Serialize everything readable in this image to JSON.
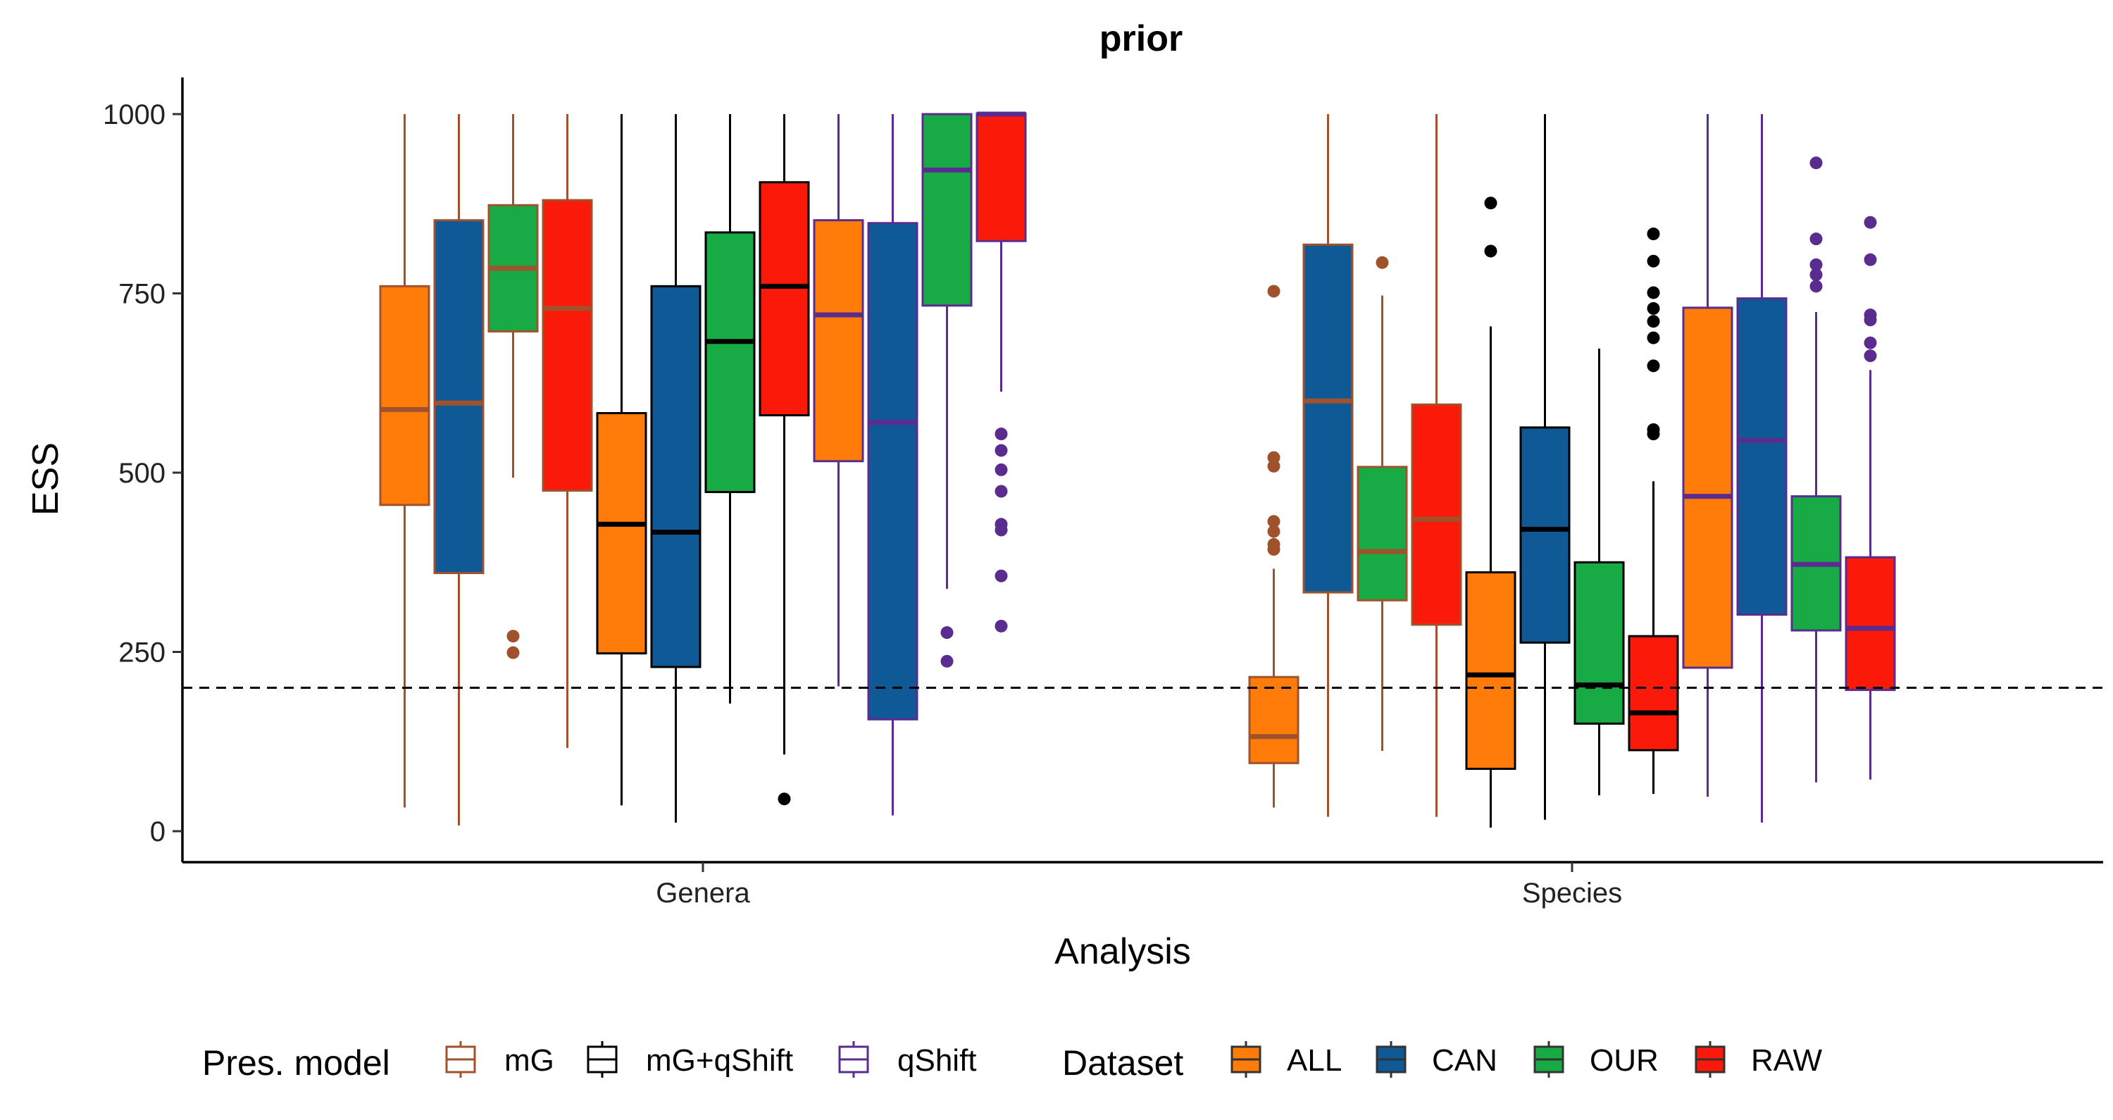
{
  "chart_data": {
    "type": "boxplot",
    "title": "prior",
    "xlabel": "Analysis",
    "ylabel": "ESS",
    "ylim": [
      -45,
      1050
    ],
    "yticks": [
      0,
      250,
      500,
      750,
      1000
    ],
    "categories": [
      "Genera",
      "Species"
    ],
    "reference_line": {
      "y": 200,
      "style": "dashed"
    },
    "grid": false,
    "legend_position": "bottom",
    "legend": {
      "pres_model": {
        "title": "Pres. model",
        "items": [
          {
            "label": "mG",
            "color": "#a0522d"
          },
          {
            "label": "mG+qShift",
            "color": "#000000"
          },
          {
            "label": "qShift",
            "color": "#5b2c8f"
          }
        ]
      },
      "dataset": {
        "title": "Dataset",
        "items": [
          {
            "label": "ALL",
            "color": "#ff7b0a"
          },
          {
            "label": "CAN",
            "color": "#0f5a96"
          },
          {
            "label": "OUR",
            "color": "#18aa45"
          },
          {
            "label": "RAW",
            "color": "#fb190a"
          }
        ]
      }
    },
    "boxes": [
      {
        "category": "Genera",
        "pres_model": "mG",
        "dataset": "ALL",
        "whisker_low": 33,
        "q1": 455,
        "median": 588,
        "q3": 760,
        "whisker_high": 1000,
        "outliers": []
      },
      {
        "category": "Genera",
        "pres_model": "mG",
        "dataset": "CAN",
        "whisker_low": 8,
        "q1": 360,
        "median": 597,
        "q3": 852,
        "whisker_high": 1000,
        "outliers": []
      },
      {
        "category": "Genera",
        "pres_model": "mG",
        "dataset": "OUR",
        "whisker_low": 493,
        "q1": 697,
        "median": 785,
        "q3": 873,
        "whisker_high": 1000,
        "outliers": [
          272,
          249
        ]
      },
      {
        "category": "Genera",
        "pres_model": "mG",
        "dataset": "RAW",
        "whisker_low": 116,
        "q1": 475,
        "median": 729,
        "q3": 880,
        "whisker_high": 1000,
        "outliers": []
      },
      {
        "category": "Genera",
        "pres_model": "mG+qShift",
        "dataset": "ALL",
        "whisker_low": 36,
        "q1": 248,
        "median": 428,
        "q3": 583,
        "whisker_high": 1000,
        "outliers": []
      },
      {
        "category": "Genera",
        "pres_model": "mG+qShift",
        "dataset": "CAN",
        "whisker_low": 12,
        "q1": 229,
        "median": 417,
        "q3": 760,
        "whisker_high": 1000,
        "outliers": []
      },
      {
        "category": "Genera",
        "pres_model": "mG+qShift",
        "dataset": "OUR",
        "whisker_low": 178,
        "q1": 473,
        "median": 683,
        "q3": 835,
        "whisker_high": 1000,
        "outliers": []
      },
      {
        "category": "Genera",
        "pres_model": "mG+qShift",
        "dataset": "RAW",
        "whisker_low": 107,
        "q1": 580,
        "median": 760,
        "q3": 905,
        "whisker_high": 1000,
        "outliers": [
          45
        ]
      },
      {
        "category": "Genera",
        "pres_model": "qShift",
        "dataset": "ALL",
        "whisker_low": 202,
        "q1": 516,
        "median": 720,
        "q3": 852,
        "whisker_high": 1000,
        "outliers": []
      },
      {
        "category": "Genera",
        "pres_model": "qShift",
        "dataset": "CAN",
        "whisker_low": 22,
        "q1": 156,
        "median": 570,
        "q3": 848,
        "whisker_high": 1000,
        "outliers": []
      },
      {
        "category": "Genera",
        "pres_model": "qShift",
        "dataset": "OUR",
        "whisker_low": 338,
        "q1": 733,
        "median": 922,
        "q3": 1000,
        "whisker_high": 1000,
        "outliers": [
          277,
          237
        ]
      },
      {
        "category": "Genera",
        "pres_model": "qShift",
        "dataset": "RAW",
        "whisker_low": 613,
        "q1": 823,
        "median": 1000,
        "q3": 1001,
        "whisker_high": 1001,
        "outliers": [
          554,
          531,
          504,
          474,
          428,
          420,
          356,
          286
        ]
      },
      {
        "category": "Species",
        "pres_model": "mG",
        "dataset": "ALL",
        "whisker_low": 33,
        "q1": 95,
        "median": 132,
        "q3": 215,
        "whisker_high": 366,
        "outliers": [
          753,
          521,
          509,
          432,
          418,
          400,
          393
        ]
      },
      {
        "category": "Species",
        "pres_model": "mG",
        "dataset": "CAN",
        "whisker_low": 20,
        "q1": 333,
        "median": 600,
        "q3": 818,
        "whisker_high": 1000,
        "outliers": []
      },
      {
        "category": "Species",
        "pres_model": "mG",
        "dataset": "OUR",
        "whisker_low": 112,
        "q1": 322,
        "median": 390,
        "q3": 508,
        "whisker_high": 747,
        "outliers": [
          793
        ]
      },
      {
        "category": "Species",
        "pres_model": "mG",
        "dataset": "RAW",
        "whisker_low": 20,
        "q1": 288,
        "median": 435,
        "q3": 595,
        "whisker_high": 1000,
        "outliers": []
      },
      {
        "category": "Species",
        "pres_model": "mG+qShift",
        "dataset": "ALL",
        "whisker_low": 5,
        "q1": 87,
        "median": 218,
        "q3": 361,
        "whisker_high": 704,
        "outliers": [
          876,
          809
        ]
      },
      {
        "category": "Species",
        "pres_model": "mG+qShift",
        "dataset": "CAN",
        "whisker_low": 16,
        "q1": 263,
        "median": 421,
        "q3": 563,
        "whisker_high": 1000,
        "outliers": []
      },
      {
        "category": "Species",
        "pres_model": "mG+qShift",
        "dataset": "OUR",
        "whisker_low": 50,
        "q1": 150,
        "median": 204,
        "q3": 375,
        "whisker_high": 673,
        "outliers": []
      },
      {
        "category": "Species",
        "pres_model": "mG+qShift",
        "dataset": "RAW",
        "whisker_low": 52,
        "q1": 113,
        "median": 165,
        "q3": 272,
        "whisker_high": 488,
        "outliers": [
          833,
          795,
          751,
          729,
          711,
          688,
          649,
          560,
          554
        ]
      },
      {
        "category": "Species",
        "pres_model": "qShift",
        "dataset": "ALL",
        "whisker_low": 48,
        "q1": 228,
        "median": 467,
        "q3": 730,
        "whisker_high": 1000,
        "outliers": []
      },
      {
        "category": "Species",
        "pres_model": "qShift",
        "dataset": "CAN",
        "whisker_low": 12,
        "q1": 302,
        "median": 545,
        "q3": 743,
        "whisker_high": 1000,
        "outliers": []
      },
      {
        "category": "Species",
        "pres_model": "qShift",
        "dataset": "OUR",
        "whisker_low": 68,
        "q1": 280,
        "median": 372,
        "q3": 467,
        "whisker_high": 724,
        "outliers": [
          932,
          826,
          790,
          776,
          760
        ]
      },
      {
        "category": "Species",
        "pres_model": "qShift",
        "dataset": "RAW",
        "whisker_low": 72,
        "q1": 197,
        "median": 283,
        "q3": 382,
        "whisker_high": 643,
        "outliers": [
          849,
          797,
          720,
          713,
          681,
          663
        ]
      }
    ]
  }
}
